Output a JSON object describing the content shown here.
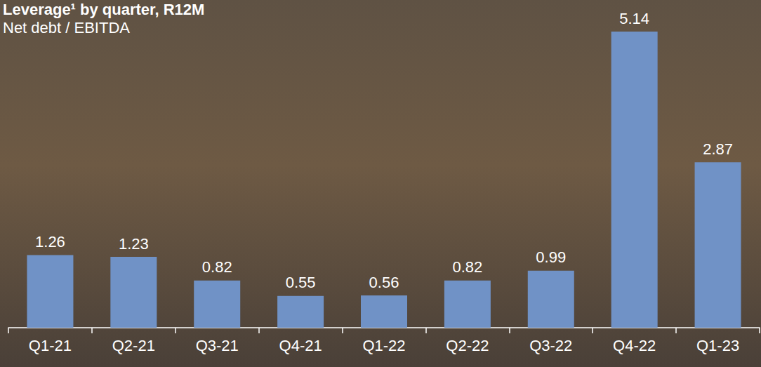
{
  "chart_data": {
    "type": "bar",
    "title": "Leverage¹ by quarter, R12M",
    "subtitle": "Net debt / EBITDA",
    "categories": [
      "Q1-21",
      "Q2-21",
      "Q3-21",
      "Q4-21",
      "Q1-22",
      "Q2-22",
      "Q3-22",
      "Q4-22",
      "Q1-23"
    ],
    "values": [
      1.26,
      1.23,
      0.82,
      0.55,
      0.56,
      0.82,
      0.99,
      5.14,
      2.87
    ],
    "color": "#7092c6",
    "data_labels": true,
    "tick_labels": "x",
    "grid": false
  }
}
